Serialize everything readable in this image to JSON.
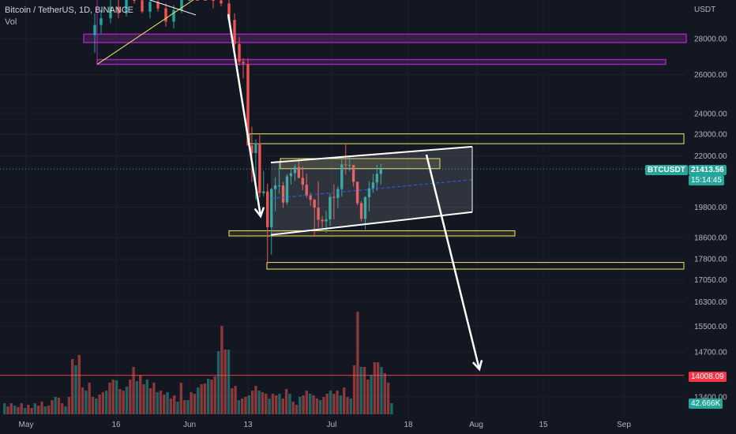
{
  "header": {
    "symbol_title": "Bitcoin / TetherUS, 1D, BINANCE",
    "volume_label": "Vol"
  },
  "price_axis": {
    "currency": "USDT",
    "ticks": [
      "28000.00",
      "26000.00",
      "24000.00",
      "23000.00",
      "22000.00",
      "19800.00",
      "18600.00",
      "17800.00",
      "17050.00",
      "16300.00",
      "15500.00",
      "14700.00",
      "13400.00"
    ]
  },
  "tags": {
    "symbol": "BTCUSDT",
    "last_price": "21413.56",
    "countdown": "15:14:45",
    "line_price": "14008.09",
    "volume_value": "42.666K"
  },
  "time_axis": {
    "ticks": [
      "May",
      "16",
      "Jun",
      "13",
      "Jul",
      "18",
      "Aug",
      "15",
      "Sep"
    ]
  },
  "colors": {
    "background": "#131722",
    "up": "#26a69a",
    "down": "#ef5350",
    "zone_purple": "#9c27b0",
    "zone_yellow": "#f5e663",
    "arrow": "#ffffff"
  },
  "chart_data": {
    "type": "candlestick",
    "symbol": "BTCUSDT",
    "interval": "1D",
    "exchange": "BINANCE",
    "price_axis_ticks": [
      28000,
      26000,
      24000,
      23000,
      22000,
      19800,
      18600,
      17800,
      17050,
      16300,
      15500,
      14700,
      13400
    ],
    "last_price": 21413.56,
    "horizontal_line_price": 14008.09,
    "volume_last": "42.666K",
    "visible_candles": [
      {
        "date": "2022-06-13",
        "open": 26570,
        "high": 26880,
        "low": 22600,
        "close": 22480
      },
      {
        "date": "2022-06-14",
        "open": 22480,
        "high": 23360,
        "low": 20850,
        "close": 22130
      },
      {
        "date": "2022-06-15",
        "open": 22130,
        "high": 22760,
        "low": 20100,
        "close": 22580
      },
      {
        "date": "2022-06-16",
        "open": 22580,
        "high": 22980,
        "low": 20200,
        "close": 20380
      },
      {
        "date": "2022-06-17",
        "open": 20380,
        "high": 21330,
        "low": 20250,
        "close": 20450
      },
      {
        "date": "2022-06-18",
        "open": 20450,
        "high": 20780,
        "low": 17620,
        "close": 19000
      },
      {
        "date": "2022-06-19",
        "open": 19000,
        "high": 20600,
        "low": 17950,
        "close": 20550
      },
      {
        "date": "2022-06-20",
        "open": 20550,
        "high": 21050,
        "low": 19640,
        "close": 20700
      },
      {
        "date": "2022-06-21",
        "open": 20700,
        "high": 21700,
        "low": 20350,
        "close": 20700
      },
      {
        "date": "2022-06-22",
        "open": 20700,
        "high": 20850,
        "low": 19770,
        "close": 19990
      },
      {
        "date": "2022-06-23",
        "open": 19990,
        "high": 21200,
        "low": 19890,
        "close": 21100
      },
      {
        "date": "2022-06-24",
        "open": 21100,
        "high": 21450,
        "low": 20740,
        "close": 21230
      },
      {
        "date": "2022-06-25",
        "open": 21230,
        "high": 21600,
        "low": 20900,
        "close": 21500
      },
      {
        "date": "2022-06-26",
        "open": 21500,
        "high": 21860,
        "low": 21000,
        "close": 21030
      },
      {
        "date": "2022-06-27",
        "open": 21030,
        "high": 21520,
        "low": 20500,
        "close": 20730
      },
      {
        "date": "2022-06-28",
        "open": 20730,
        "high": 21200,
        "low": 20180,
        "close": 20280
      },
      {
        "date": "2022-06-29",
        "open": 20280,
        "high": 20400,
        "low": 19850,
        "close": 20100
      },
      {
        "date": "2022-06-30",
        "open": 20100,
        "high": 20140,
        "low": 18630,
        "close": 19780
      },
      {
        "date": "2022-07-01",
        "open": 19780,
        "high": 20880,
        "low": 18970,
        "close": 19290
      },
      {
        "date": "2022-07-02",
        "open": 19290,
        "high": 19440,
        "low": 18970,
        "close": 19230
      },
      {
        "date": "2022-07-03",
        "open": 19230,
        "high": 19650,
        "low": 18780,
        "close": 19310
      },
      {
        "date": "2022-07-04",
        "open": 19310,
        "high": 20360,
        "low": 19050,
        "close": 20220
      },
      {
        "date": "2022-07-05",
        "open": 20220,
        "high": 20750,
        "low": 19300,
        "close": 20180
      },
      {
        "date": "2022-07-06",
        "open": 20180,
        "high": 20660,
        "low": 19760,
        "close": 20550
      },
      {
        "date": "2022-07-07",
        "open": 20550,
        "high": 21840,
        "low": 20240,
        "close": 21620
      },
      {
        "date": "2022-07-08",
        "open": 21620,
        "high": 22520,
        "low": 21180,
        "close": 21590
      },
      {
        "date": "2022-07-09",
        "open": 21590,
        "high": 21950,
        "low": 21320,
        "close": 21590
      },
      {
        "date": "2022-07-10",
        "open": 21590,
        "high": 21600,
        "low": 20650,
        "close": 20860
      },
      {
        "date": "2022-07-11",
        "open": 20860,
        "high": 20860,
        "low": 19870,
        "close": 19960
      },
      {
        "date": "2022-07-12",
        "open": 19960,
        "high": 20050,
        "low": 19230,
        "close": 19330
      },
      {
        "date": "2022-07-13",
        "open": 19330,
        "high": 20250,
        "low": 18910,
        "close": 20210
      },
      {
        "date": "2022-07-14",
        "open": 20210,
        "high": 20880,
        "low": 19630,
        "close": 20580
      },
      {
        "date": "2022-07-15",
        "open": 20580,
        "high": 21200,
        "low": 20390,
        "close": 20830
      },
      {
        "date": "2022-07-16",
        "open": 20830,
        "high": 21600,
        "low": 20480,
        "close": 21200
      },
      {
        "date": "2022-07-17",
        "open": 21200,
        "high": 21650,
        "low": 20750,
        "close": 21413.56
      }
    ],
    "annotations": [
      "resistance zones",
      "support zones",
      "rising channel",
      "down arrows"
    ]
  }
}
